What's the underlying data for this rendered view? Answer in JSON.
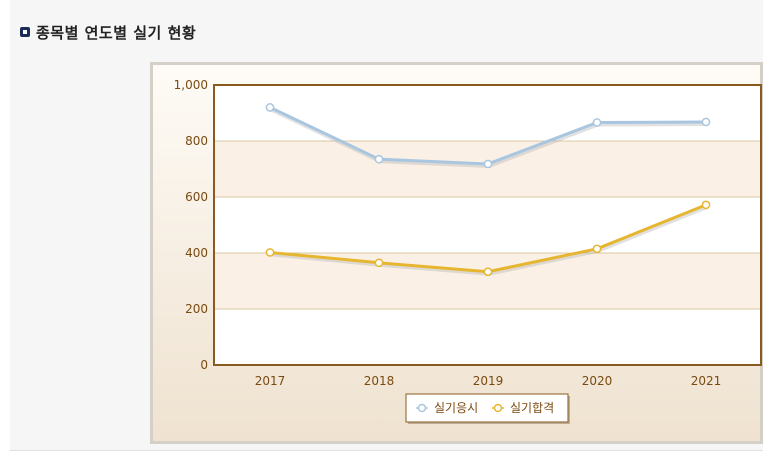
{
  "page": {
    "title": "종목별 연도별 실기 현황"
  },
  "chart_data": {
    "type": "line",
    "title": "",
    "xlabel": "",
    "ylabel": "",
    "categories": [
      "2017",
      "2018",
      "2019",
      "2020",
      "2021"
    ],
    "ylim": [
      0,
      1000
    ],
    "yticks": [
      "0",
      "200",
      "400",
      "600",
      "800",
      "1,000"
    ],
    "grid": true,
    "legend_position": "bottom-center",
    "series": [
      {
        "name": "실기응시",
        "color": "#a9c6e0",
        "values": [
          920,
          735,
          718,
          866,
          868
        ]
      },
      {
        "name": "실기합격",
        "color": "#e6b630",
        "values": [
          402,
          365,
          333,
          415,
          572
        ]
      }
    ]
  }
}
